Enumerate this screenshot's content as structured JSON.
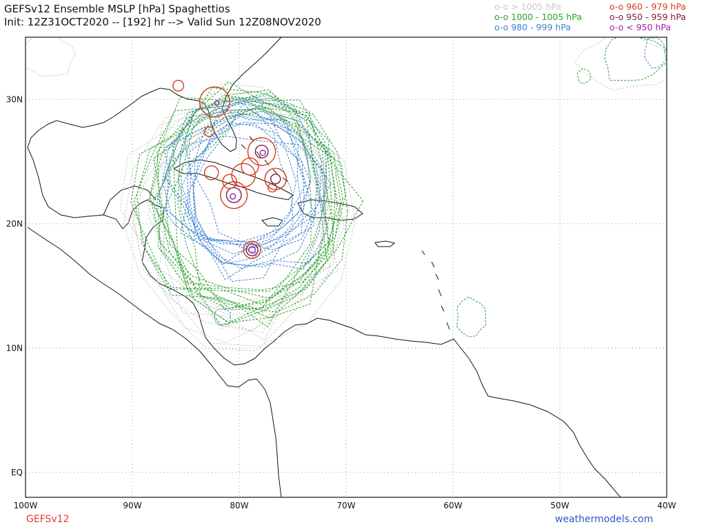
{
  "title": {
    "line1": "GEFSv12 Ensemble MSLP [hPa] Spaghettios",
    "line2": "Init: 12Z31OCT2020 -- [192] hr --> Valid Sun 12Z08NOV2020"
  },
  "legend": [
    {
      "label": "o-o > 1005 hPa",
      "color": "#c8c8c8"
    },
    {
      "label": "o-o 1000 - 1005 hPa",
      "color": "#2ca02c"
    },
    {
      "label": "o-o 980 - 999 hPa",
      "color": "#3a7fd0"
    },
    {
      "label": "o-o 960 - 979 hPa",
      "color": "#d43a1a"
    },
    {
      "label": "o-o 950 - 959 hPa",
      "color": "#7a1a3a"
    },
    {
      "label": "o-o < 950 hPa",
      "color": "#a020b0"
    }
  ],
  "axes": {
    "lon_labels": [
      "100W",
      "90W",
      "80W",
      "70W",
      "60W",
      "50W",
      "40W"
    ],
    "lat_labels": [
      "30N",
      "20N",
      "10N",
      "EQ"
    ],
    "lon_range": [
      -100,
      -40
    ],
    "lat_range": [
      -2,
      35
    ]
  },
  "footer": {
    "model": "GEFSv12",
    "site": "weathermodels.com"
  },
  "lows": [
    {
      "lon": -82.3,
      "lat": 29.8,
      "cat": "red",
      "r": 1.4
    },
    {
      "lon": -82.1,
      "lat": 29.7,
      "cat": "purple",
      "r": 0.2
    },
    {
      "lon": -85.7,
      "lat": 31.1,
      "cat": "red",
      "r": 0.5
    },
    {
      "lon": -82.8,
      "lat": 27.4,
      "cat": "red",
      "r": 0.45
    },
    {
      "lon": -77.9,
      "lat": 25.8,
      "cat": "red",
      "r": 1.3
    },
    {
      "lon": -77.9,
      "lat": 25.8,
      "cat": "maroon",
      "r": 0.6
    },
    {
      "lon": -77.8,
      "lat": 25.7,
      "cat": "purple",
      "r": 0.25
    },
    {
      "lon": -76.6,
      "lat": 23.6,
      "cat": "red",
      "r": 1.0
    },
    {
      "lon": -76.6,
      "lat": 23.6,
      "cat": "maroon",
      "r": 0.45
    },
    {
      "lon": -79.6,
      "lat": 23.9,
      "cat": "red",
      "r": 1.1
    },
    {
      "lon": -79.0,
      "lat": 24.6,
      "cat": "red",
      "r": 0.8
    },
    {
      "lon": -80.5,
      "lat": 22.3,
      "cat": "red",
      "r": 1.25
    },
    {
      "lon": -80.5,
      "lat": 22.3,
      "cat": "maroon",
      "r": 0.7
    },
    {
      "lon": -80.6,
      "lat": 22.2,
      "cat": "purple",
      "r": 0.25
    },
    {
      "lon": -80.9,
      "lat": 23.4,
      "cat": "red",
      "r": 0.65
    },
    {
      "lon": -82.6,
      "lat": 24.1,
      "cat": "red",
      "r": 0.65
    },
    {
      "lon": -76.9,
      "lat": 22.9,
      "cat": "red",
      "r": 0.4
    },
    {
      "lon": -78.8,
      "lat": 17.9,
      "cat": "red",
      "r": 0.8
    },
    {
      "lon": -78.8,
      "lat": 17.9,
      "cat": "maroon",
      "r": 0.55
    },
    {
      "lon": -78.8,
      "lat": 17.9,
      "cat": "purple",
      "r": 0.3
    }
  ]
}
